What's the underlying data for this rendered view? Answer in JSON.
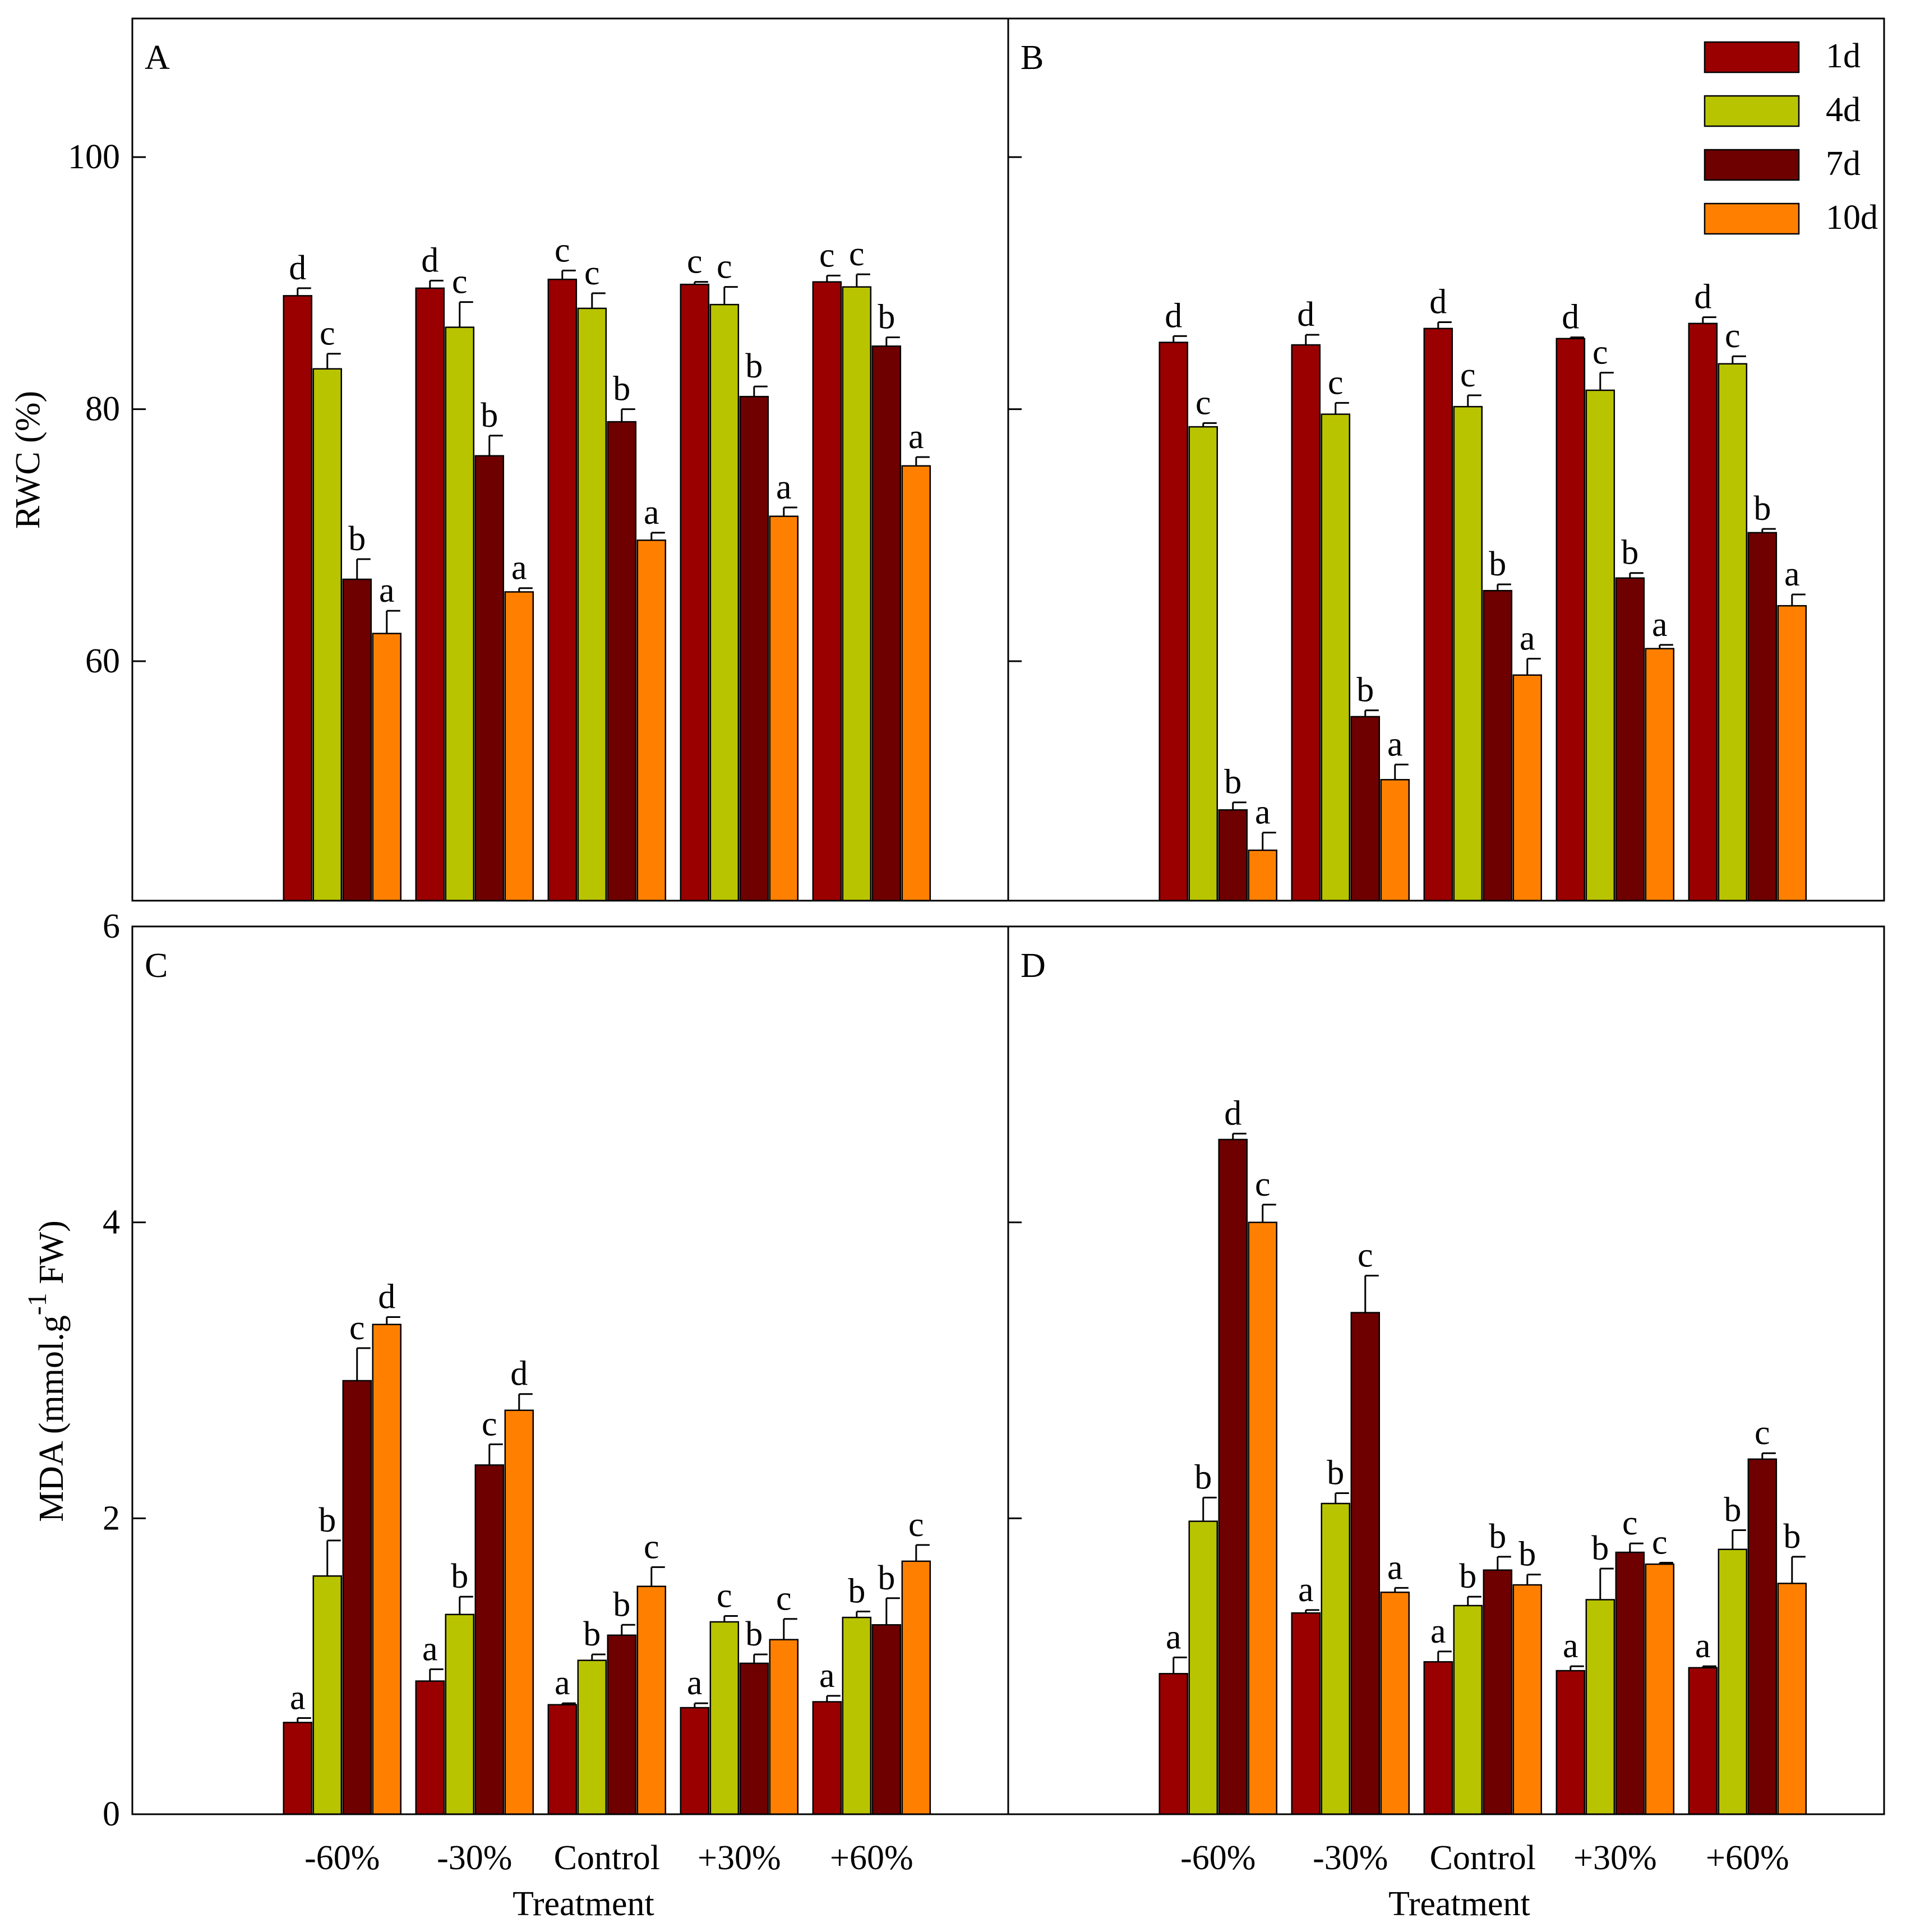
{
  "chart_data": [
    {
      "panel": "A",
      "type": "bar",
      "categories": [
        "-60%",
        "-30%",
        "Control",
        "+30%",
        "+60%"
      ],
      "series": [
        {
          "name": "1d",
          "values": [
            89.0,
            89.6,
            90.3,
            89.9,
            90.1
          ],
          "errors": [
            0.6,
            0.6,
            0.7,
            0.2,
            0.5
          ],
          "letters": [
            "d",
            "d",
            "c",
            "c",
            "c"
          ]
        },
        {
          "name": "4d",
          "values": [
            83.2,
            86.5,
            88.0,
            88.3,
            89.7
          ],
          "errors": [
            1.2,
            2.0,
            1.2,
            1.4,
            1.0
          ],
          "letters": [
            "c",
            "c",
            "c",
            "c",
            "c"
          ]
        },
        {
          "name": "7d",
          "values": [
            66.5,
            76.3,
            79.0,
            81.0,
            85.0
          ],
          "errors": [
            1.6,
            1.6,
            1.0,
            0.8,
            0.7
          ],
          "letters": [
            "b",
            "b",
            "b",
            "b",
            "b"
          ]
        },
        {
          "name": "10d",
          "values": [
            62.2,
            65.5,
            69.6,
            71.5,
            75.5
          ],
          "errors": [
            1.8,
            0.3,
            0.6,
            0.7,
            0.7
          ],
          "letters": [
            "a",
            "a",
            "a",
            "a",
            "a"
          ]
        }
      ],
      "ylim": [
        41,
        111
      ],
      "yticks": [
        60,
        80,
        100
      ],
      "ylabel": "RWC (%)",
      "xlabel": "",
      "label": "A"
    },
    {
      "panel": "B",
      "type": "bar",
      "categories": [
        "-60%",
        "-30%",
        "Control",
        "+30%",
        "+60%"
      ],
      "series": [
        {
          "name": "1d",
          "values": [
            85.3,
            85.1,
            86.4,
            85.6,
            86.8
          ],
          "errors": [
            0.5,
            0.8,
            0.5,
            0.1,
            0.5
          ],
          "letters": [
            "d",
            "d",
            "d",
            "d",
            "d"
          ]
        },
        {
          "name": "4d",
          "values": [
            78.6,
            79.6,
            80.2,
            81.5,
            83.6
          ],
          "errors": [
            0.3,
            0.9,
            0.9,
            1.4,
            0.6
          ],
          "letters": [
            "c",
            "c",
            "c",
            "c",
            "c"
          ]
        },
        {
          "name": "7d",
          "values": [
            48.2,
            55.6,
            65.6,
            66.6,
            70.2
          ],
          "errors": [
            0.6,
            0.5,
            0.5,
            0.4,
            0.3
          ],
          "letters": [
            "b",
            "b",
            "b",
            "b",
            "b"
          ]
        },
        {
          "name": "10d",
          "values": [
            45.0,
            50.6,
            58.9,
            61.0,
            64.4
          ],
          "errors": [
            1.4,
            1.2,
            1.3,
            0.3,
            0.9
          ],
          "letters": [
            "a",
            "a",
            "a",
            "a",
            "a"
          ]
        }
      ],
      "ylim": [
        41,
        111
      ],
      "yticks": [
        60,
        80,
        100
      ],
      "ylabel": "",
      "xlabel": "",
      "label": "B"
    },
    {
      "panel": "C",
      "type": "bar",
      "categories": [
        "-60%",
        "-30%",
        "Control",
        "+30%",
        "+60%"
      ],
      "series": [
        {
          "name": "1d",
          "values": [
            0.62,
            0.9,
            0.74,
            0.72,
            0.76
          ],
          "errors": [
            0.03,
            0.08,
            0.01,
            0.03,
            0.04
          ],
          "letters": [
            "a",
            "a",
            "a",
            "a",
            "a"
          ]
        },
        {
          "name": "4d",
          "values": [
            1.61,
            1.35,
            1.04,
            1.3,
            1.33
          ],
          "errors": [
            0.24,
            0.12,
            0.04,
            0.04,
            0.04
          ],
          "letters": [
            "b",
            "b",
            "b",
            "c",
            "b"
          ]
        },
        {
          "name": "7d",
          "values": [
            2.93,
            2.36,
            1.21,
            1.02,
            1.28
          ],
          "errors": [
            0.22,
            0.14,
            0.07,
            0.06,
            0.18
          ],
          "letters": [
            "c",
            "c",
            "b",
            "b",
            "b"
          ]
        },
        {
          "name": "10d",
          "values": [
            3.31,
            2.73,
            1.54,
            1.18,
            1.71
          ],
          "errors": [
            0.05,
            0.11,
            0.13,
            0.14,
            0.11
          ],
          "letters": [
            "d",
            "d",
            "c",
            "c",
            "c"
          ]
        }
      ],
      "ylim": [
        0,
        6
      ],
      "yticks": [
        0,
        2,
        4,
        6
      ],
      "ylabel": "MDA (mmol.g",
      "ylabel_sup": "-1",
      "ylabel_end": " FW)",
      "xlabel": "Treatment",
      "label": "C"
    },
    {
      "panel": "D",
      "type": "bar",
      "categories": [
        "-60%",
        "-30%",
        "Control",
        "+30%",
        "+60%"
      ],
      "series": [
        {
          "name": "1d",
          "values": [
            0.95,
            1.36,
            1.03,
            0.97,
            0.99
          ],
          "errors": [
            0.11,
            0.02,
            0.07,
            0.03,
            0.01
          ],
          "letters": [
            "a",
            "a",
            "a",
            "a",
            "a"
          ]
        },
        {
          "name": "4d",
          "values": [
            1.98,
            2.1,
            1.41,
            1.45,
            1.79
          ],
          "errors": [
            0.16,
            0.07,
            0.06,
            0.21,
            0.13
          ],
          "letters": [
            "b",
            "b",
            "b",
            "b",
            "b"
          ]
        },
        {
          "name": "7d",
          "values": [
            4.56,
            3.39,
            1.65,
            1.77,
            2.4
          ],
          "errors": [
            0.04,
            0.25,
            0.09,
            0.06,
            0.04
          ],
          "letters": [
            "d",
            "c",
            "b",
            "c",
            "c"
          ]
        },
        {
          "name": "10d",
          "values": [
            4.0,
            1.5,
            1.55,
            1.69,
            1.56
          ],
          "errors": [
            0.12,
            0.03,
            0.07,
            0.01,
            0.18
          ],
          "letters": [
            "c",
            "a",
            "b",
            "c",
            "b"
          ]
        }
      ],
      "ylim": [
        0,
        6
      ],
      "yticks": [
        0,
        2,
        4,
        6
      ],
      "ylabel": "",
      "xlabel": "Treatment",
      "label": "D"
    }
  ],
  "legend": {
    "position": "top-right of panel B",
    "entries": [
      {
        "name": "1d",
        "color": "#9a0000"
      },
      {
        "name": "4d",
        "color": "#b9c400"
      },
      {
        "name": "7d",
        "color": "#6e0000"
      },
      {
        "name": "10d",
        "color": "#ff8000"
      }
    ]
  },
  "colors": {
    "1d": "#9a0000",
    "4d": "#b9c400",
    "7d": "#6e0000",
    "10d": "#ff8000"
  }
}
